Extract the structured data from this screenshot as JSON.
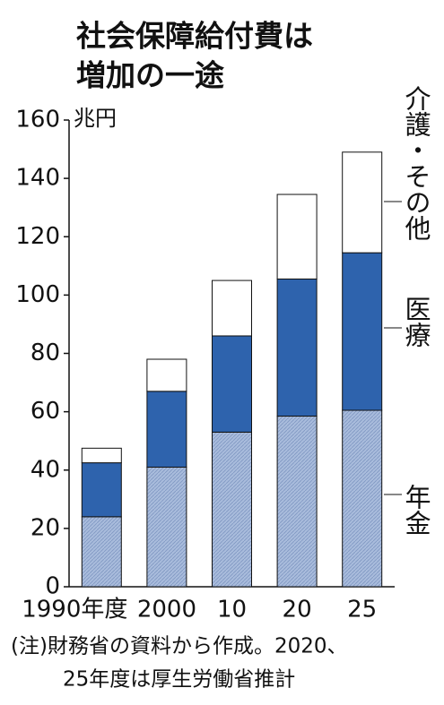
{
  "chart_data": {
    "type": "stacked-bar",
    "title": [
      "社会保障給付費は",
      "増加の一途"
    ],
    "unit": "兆円",
    "categories": [
      "1990年度",
      "2000",
      "10",
      "20",
      "25"
    ],
    "series": [
      {
        "name": "年金",
        "color": "#a9bcdc",
        "values": [
          24,
          41,
          53,
          58.5,
          60.5
        ]
      },
      {
        "name": "医療",
        "color": "#2e63ad",
        "values": [
          18.5,
          26,
          33,
          47,
          54
        ]
      },
      {
        "name": "介護・その他",
        "color": "#ffffff",
        "values": [
          5,
          11,
          19,
          29,
          34.5
        ]
      }
    ],
    "ylim": [
      0,
      160
    ],
    "yticks": [
      0,
      20,
      40,
      60,
      80,
      100,
      120,
      140,
      160
    ],
    "notes": [
      "(注)財務省の資料から作成。2020、",
      "25年度は厚生労働省推計"
    ]
  }
}
